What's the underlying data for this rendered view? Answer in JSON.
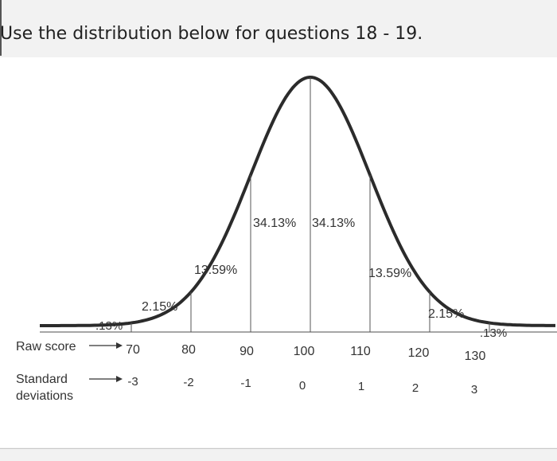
{
  "question_text": "Use the distribution below for questions 18 - 19.",
  "diagram": {
    "row_labels": {
      "raw_score": "Raw score",
      "standard_line1": "Standard",
      "standard_line2": "deviations"
    },
    "raw_scores": [
      "70",
      "80",
      "90",
      "100",
      "110",
      "120",
      "130"
    ],
    "standard_deviations": [
      "-3",
      "-2",
      "-1",
      "0",
      "1",
      "2",
      "3"
    ],
    "region_percents": [
      ".13%",
      "2.15%",
      "13.59%",
      "34.13%",
      "34.13%",
      "13.59%",
      "2.15%",
      ".13%"
    ],
    "curve": {
      "type": "normal",
      "mean": 100,
      "sd": 10,
      "color": "#2b2b2b"
    }
  }
}
